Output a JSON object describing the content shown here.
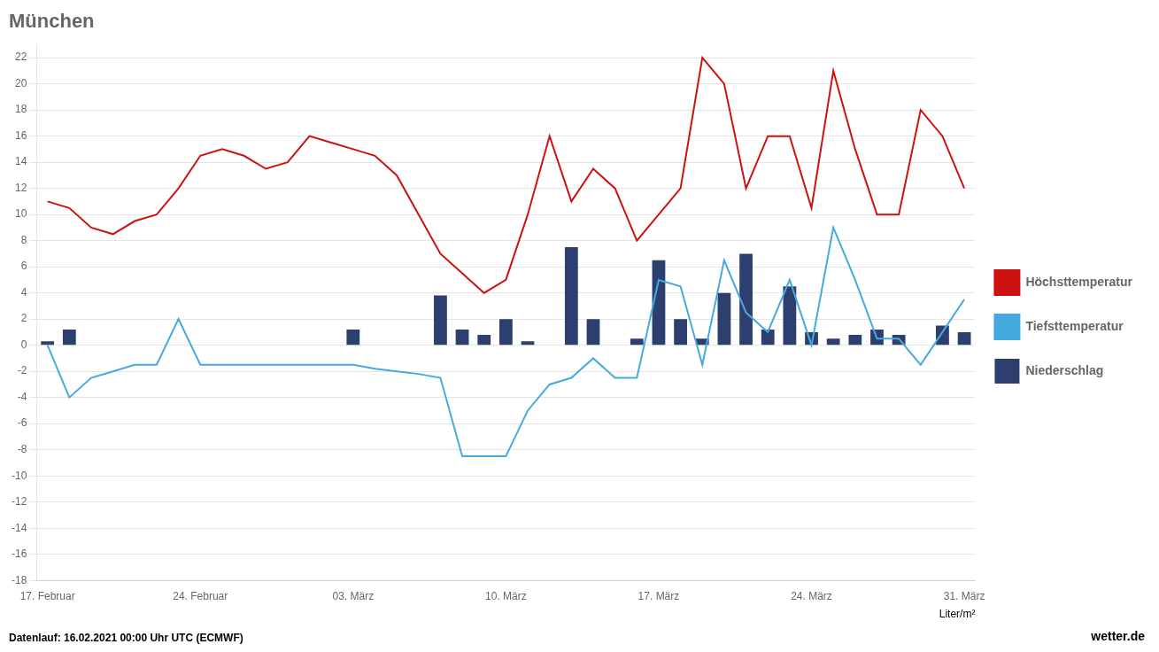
{
  "chart_data": {
    "type": "bar",
    "title": "München",
    "subtitle": "Datenlauf: 16.02.2021 00:00 Uhr UTC (ECMWF)",
    "annotations": [
      "Liter/m²",
      "wetter.",
      "de"
    ],
    "categories": [
      "17. Februar",
      null,
      null,
      null,
      null,
      null,
      null,
      "24. Februar",
      null,
      null,
      null,
      null,
      null,
      null,
      "03. März",
      null,
      null,
      null,
      null,
      null,
      null,
      "10. März",
      null,
      null,
      null,
      null,
      null,
      null,
      "17. März",
      null,
      null,
      null,
      null,
      null,
      null,
      "24. März",
      null,
      null,
      null,
      null,
      null,
      null,
      "31. März"
    ],
    "series": [
      {
        "name": "Höchsttemperatur",
        "type": "line",
        "color": "#cc1111",
        "values": [
          11,
          10.5,
          9,
          8.5,
          9.5,
          10,
          12,
          14.5,
          15,
          14.5,
          13.5,
          14,
          16,
          15.5,
          15,
          14.5,
          13,
          10,
          7,
          5.5,
          4,
          5,
          10,
          16,
          11,
          13.5,
          12,
          8,
          10,
          12,
          22,
          20,
          12,
          16,
          16,
          10.5,
          21,
          15,
          10,
          10,
          18,
          16,
          12
        ]
      },
      {
        "name": "Tiefsttemperatur",
        "type": "line",
        "color": "#44aadd",
        "values": [
          0,
          -4,
          -2.5,
          -2,
          -1.5,
          -1.5,
          2,
          -1.5,
          -1.5,
          -1.5,
          -1.5,
          -1.5,
          -1.5,
          -1.5,
          -1.5,
          -1.8,
          -2,
          -2.2,
          -2.5,
          -8.5,
          -8.5,
          -8.5,
          -5,
          -3,
          -2.5,
          -1,
          -2.5,
          -2.5,
          5,
          4.5,
          -1.5,
          6.5,
          2.5,
          1,
          5,
          0,
          9,
          5,
          0.5,
          0.5,
          -1.5,
          1,
          3.5
        ]
      },
      {
        "name": "Niederschlag",
        "type": "bar",
        "color": "#2d3f6e",
        "values": [
          0.3,
          1.2,
          0,
          0,
          0,
          0,
          0,
          0,
          0,
          0,
          0,
          0,
          0,
          0,
          1.2,
          0,
          0,
          0,
          3.8,
          1.2,
          0.8,
          2,
          0.3,
          0,
          7.5,
          2,
          0,
          0.5,
          6.5,
          2,
          0.5,
          4,
          7,
          1.2,
          4.5,
          1,
          0.5,
          0.8,
          1.2,
          0.8,
          0,
          1.5,
          1
        ]
      }
    ],
    "ylim": [
      -18,
      23
    ],
    "yticks": [
      -18,
      -16,
      -14,
      -12,
      -10,
      -8,
      -6,
      -4,
      -2,
      0,
      2,
      4,
      6,
      8,
      10,
      12,
      14,
      16,
      18,
      20,
      22
    ],
    "grid": true,
    "legend": "right"
  }
}
